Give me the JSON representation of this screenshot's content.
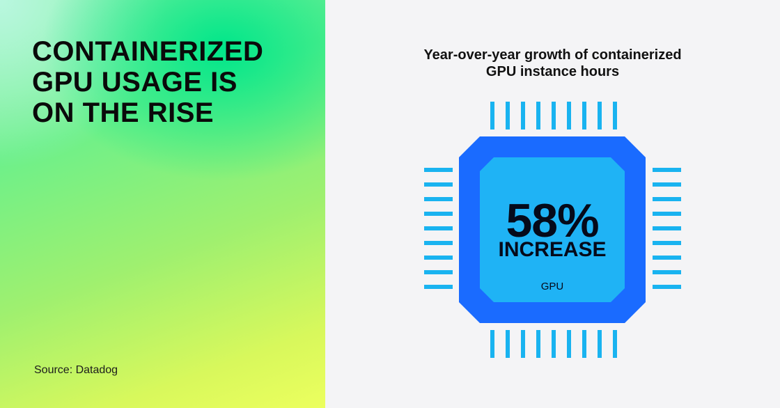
{
  "headline": {
    "lines": [
      "CONTAINERIZED",
      "GPU USAGE IS",
      "ON THE RISE"
    ]
  },
  "source": "Source: Datadog",
  "chart": {
    "title_lines": [
      "Year-over-year growth of containerized",
      "GPU instance hours"
    ],
    "stat_value": "58%",
    "stat_label": "INCREASE",
    "chip_label": "GPU"
  },
  "colors": {
    "chip_outer": "#1a6bff",
    "chip_inner": "#1fb3f5",
    "pins": "#19b3f0",
    "text_dark": "#0a0a0a",
    "right_bg": "#f4f4f6"
  },
  "icons": {
    "chip": "gpu-chip-icon"
  }
}
